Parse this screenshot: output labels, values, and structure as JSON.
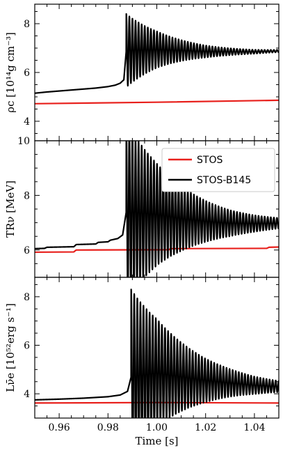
{
  "chart_data": [
    {
      "type": "line",
      "panel": "top",
      "ylabel": "ρc [10¹⁴g cm⁻³]",
      "xlim": [
        0.95,
        1.05
      ],
      "ylim": [
        3.2,
        8.8
      ],
      "yticks": [
        4,
        6,
        8
      ],
      "ytick_labels": [
        "4",
        "6",
        "8"
      ],
      "series": [
        {
          "name": "STOS",
          "color": "#e8201c",
          "x": [
            0.95,
            1.0,
            1.05
          ],
          "y": [
            4.72,
            4.78,
            4.86
          ]
        },
        {
          "name": "STOS-B145",
          "color": "#000000",
          "oscillation": {
            "onset": 0.9875,
            "period": 0.00126,
            "decay": 0.018,
            "initial_amplitude": 1.5
          },
          "x": [
            0.95,
            0.955,
            0.96,
            0.965,
            0.97,
            0.975,
            0.98,
            0.983,
            0.985,
            0.9865,
            0.9875,
            1.0,
            1.01,
            1.02,
            1.03,
            1.04,
            1.05
          ],
          "y": [
            5.15,
            5.2,
            5.24,
            5.28,
            5.32,
            5.36,
            5.42,
            5.48,
            5.56,
            5.7,
            6.9,
            6.94,
            6.9,
            6.86,
            6.85,
            6.85,
            6.88
          ]
        }
      ]
    },
    {
      "type": "line",
      "panel": "middle",
      "ylabel": "TRν [MeV]",
      "xlim": [
        0.95,
        1.05
      ],
      "ylim": [
        5.0,
        10.0
      ],
      "yticks": [
        6,
        8,
        10
      ],
      "ytick_labels": [
        "6",
        "8",
        "10"
      ],
      "legend_position": "top-right",
      "series": [
        {
          "name": "STOS",
          "color": "#e8201c",
          "x": [
            0.95,
            0.966,
            0.967,
            1.005,
            1.0055,
            1.045,
            1.046,
            1.05
          ],
          "y": [
            5.92,
            5.93,
            6.0,
            6.01,
            6.05,
            6.06,
            6.1,
            6.11
          ]
        },
        {
          "name": "STOS-B145",
          "color": "#000000",
          "oscillation": {
            "onset": 0.9875,
            "period": 0.00126,
            "decay": 0.022,
            "initial_amplitude": 3.3
          },
          "x": [
            0.95,
            0.954,
            0.955,
            0.966,
            0.967,
            0.975,
            0.976,
            0.98,
            0.981,
            0.984,
            0.986,
            0.9875,
            1.0,
            1.01,
            1.02,
            1.03,
            1.04,
            1.05
          ],
          "y": [
            6.05,
            6.06,
            6.1,
            6.12,
            6.2,
            6.22,
            6.28,
            6.3,
            6.36,
            6.42,
            6.55,
            7.4,
            7.3,
            7.15,
            7.05,
            6.98,
            6.97,
            6.98
          ]
        }
      ]
    },
    {
      "type": "line",
      "panel": "bottom",
      "ylabel": "Lν̄e [10⁵²erg s⁻¹]",
      "xlabel": "Time [s]",
      "xlim": [
        0.95,
        1.05
      ],
      "ylim": [
        3.0,
        8.8
      ],
      "yticks": [
        4,
        6,
        8
      ],
      "ytick_labels": [
        "4",
        "6",
        "8"
      ],
      "xticks": [
        0.96,
        0.98,
        1.0,
        1.02,
        1.04
      ],
      "xtick_labels": [
        "0.96",
        "0.98",
        "1.00",
        "1.02",
        "1.04"
      ],
      "series": [
        {
          "name": "STOS",
          "color": "#e8201c",
          "x": [
            0.95,
            1.0,
            1.05
          ],
          "y": [
            3.62,
            3.64,
            3.62
          ]
        },
        {
          "name": "STOS-B145",
          "color": "#000000",
          "oscillation": {
            "onset": 0.9895,
            "period": 0.00126,
            "decay": 0.022,
            "initial_amplitude": 3.6
          },
          "x": [
            0.95,
            0.96,
            0.97,
            0.98,
            0.985,
            0.988,
            0.9895,
            1.0,
            1.01,
            1.02,
            1.03,
            1.04,
            1.05
          ],
          "y": [
            3.75,
            3.78,
            3.82,
            3.88,
            3.95,
            4.1,
            4.7,
            4.85,
            4.7,
            4.55,
            4.45,
            4.35,
            4.3
          ]
        }
      ]
    }
  ]
}
